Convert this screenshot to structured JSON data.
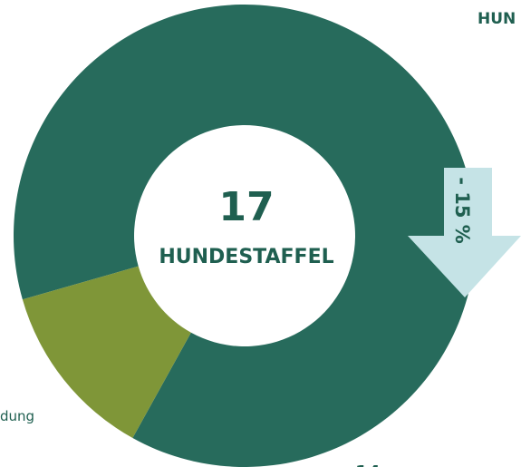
{
  "chart_data": {
    "type": "donut",
    "center_value": "17",
    "center_label": "HUNDESTAFFEL",
    "header": "HUN",
    "categories": [
      null,
      "dung"
    ],
    "values": [
      14,
      2
    ],
    "colors": [
      "#276b5c",
      "#7f9638"
    ],
    "annotation": "- 15 %",
    "annotation_color": "#c5e3e6"
  }
}
